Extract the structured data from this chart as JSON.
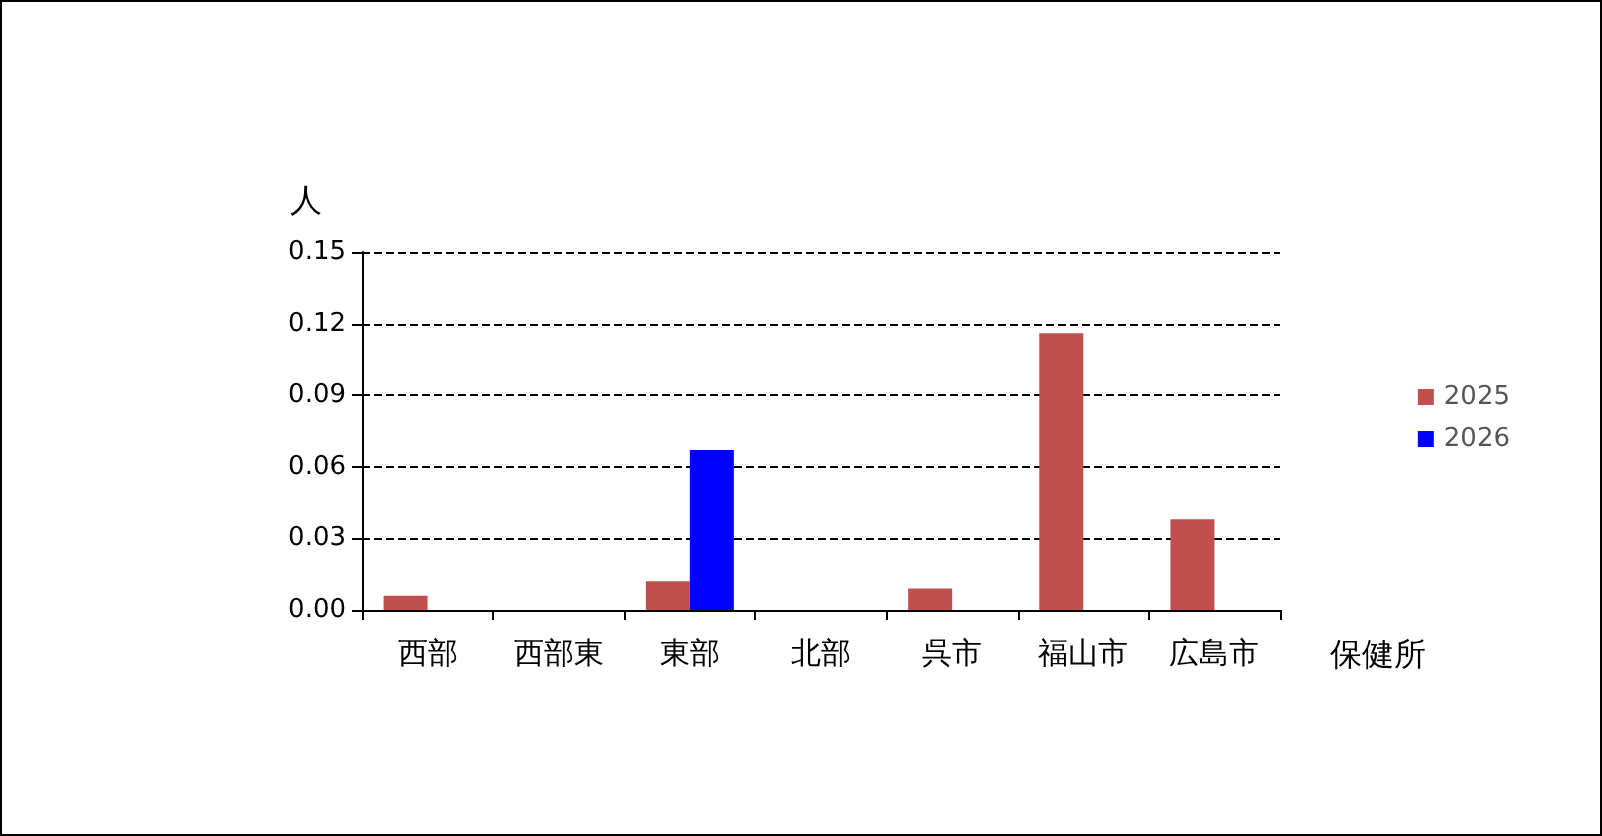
{
  "chart_data": {
    "type": "bar",
    "ylabel": "人",
    "xlabel": "保健所",
    "categories": [
      "西部",
      "西部東",
      "東部",
      "北部",
      "呉市",
      "福山市",
      "広島市"
    ],
    "series": [
      {
        "name": "2025",
        "color": "#c0504d",
        "values": [
          0.006,
          0,
          0.012,
          0,
          0.009,
          0.116,
          0.038
        ]
      },
      {
        "name": "2026",
        "color": "#0000ff",
        "values": [
          0,
          0,
          0.067,
          0,
          0,
          0,
          0
        ]
      }
    ],
    "ylim": [
      0,
      0.15
    ],
    "yticks": [
      {
        "value": 0,
        "label": "0.00"
      },
      {
        "value": 0.03,
        "label": "0.03"
      },
      {
        "value": 0.06,
        "label": "0.06"
      },
      {
        "value": 0.09,
        "label": "0.09"
      },
      {
        "value": 0.12,
        "label": "0.12"
      },
      {
        "value": 0.15,
        "label": "0.15"
      }
    ],
    "grid": "y",
    "legend": "right"
  }
}
